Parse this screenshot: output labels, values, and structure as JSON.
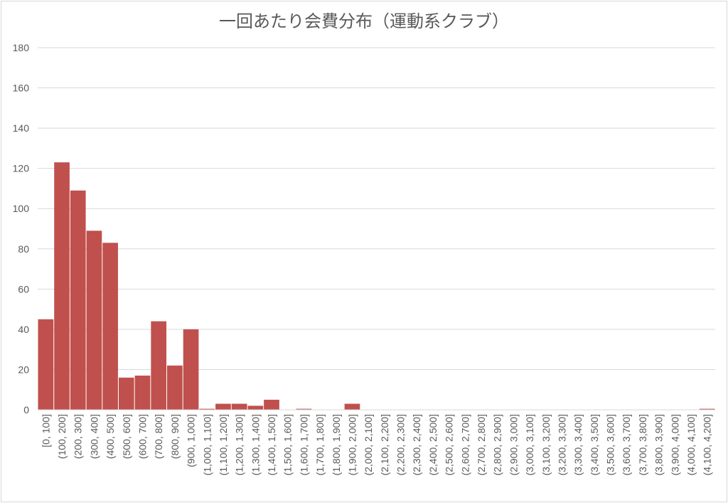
{
  "chart_data": {
    "type": "bar",
    "title": "一回あたり会費分布（運動系クラブ）",
    "xlabel": "",
    "ylabel": "",
    "ylim": [
      0,
      180
    ],
    "yticks": [
      "0",
      "20",
      "40",
      "60",
      "80",
      "100",
      "120",
      "140",
      "160",
      "180"
    ],
    "grid": true,
    "legend": "none",
    "bar_color": "#c0504d",
    "categories": [
      "[0, 100]",
      "(100, 200]",
      "(200, 300]",
      "(300, 400]",
      "(400, 500]",
      "(500, 600]",
      "(600, 700]",
      "(700, 800]",
      "(800, 900]",
      "(900, 1,000]",
      "(1,000, 1,100]",
      "(1,100, 1,200]",
      "(1,200, 1,300]",
      "(1,300, 1,400]",
      "(1,400, 1,500]",
      "(1,500, 1,600]",
      "(1,600, 1,700]",
      "(1,700, 1,800]",
      "(1,800, 1,900]",
      "(1,900, 2,000]",
      "(2,000, 2,100]",
      "(2,100, 2,200]",
      "(2,200, 2,300]",
      "(2,300, 2,400]",
      "(2,400, 2,500]",
      "(2,500, 2,600]",
      "(2,600, 2,700]",
      "(2,700, 2,800]",
      "(2,800, 2,900]",
      "(2,900, 3,000]",
      "(3,000, 3,100]",
      "(3,100, 3,200]",
      "(3,200, 3,300]",
      "(3,300, 3,400]",
      "(3,400, 3,500]",
      "(3,500, 3,600]",
      "(3,600, 3,700]",
      "(3,700, 3,800]",
      "(3,800, 3,900]",
      "(3,900, 4,000]",
      "(4,000, 4,100]",
      "(4,100, 4,200]"
    ],
    "values": [
      45,
      123,
      109,
      89,
      83,
      16,
      17,
      44,
      22,
      40,
      0.5,
      3,
      3,
      2,
      5,
      0,
      0.5,
      0,
      0,
      3,
      0,
      0,
      0,
      0,
      0,
      0,
      0,
      0,
      0,
      0,
      0,
      0,
      0,
      0,
      0,
      0,
      0,
      0,
      0,
      0,
      0,
      0.5
    ]
  }
}
